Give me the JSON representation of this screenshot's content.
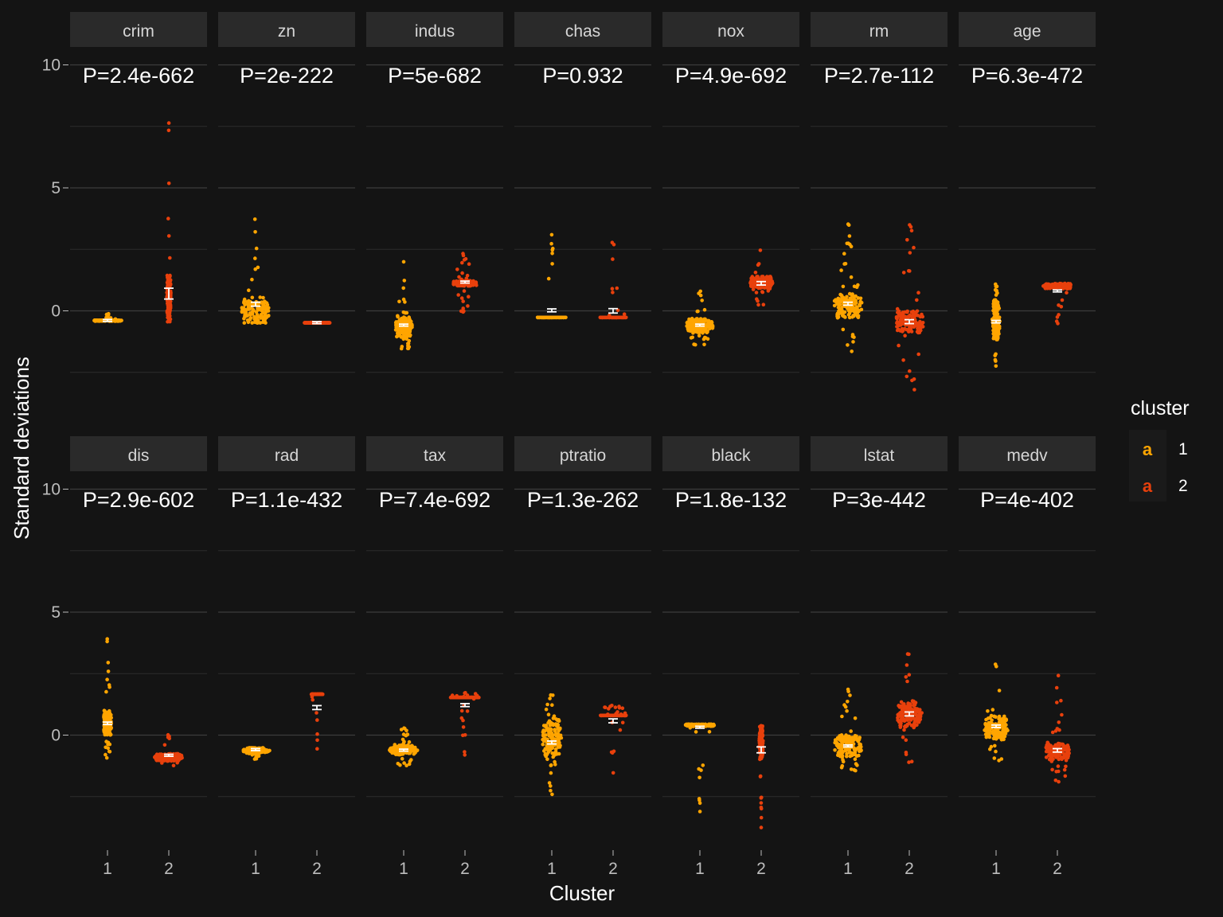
{
  "chart_data": {
    "type": "scatter",
    "subtype": "beeswarm facets with mean ± SE error bars",
    "xlabel": "Cluster",
    "ylabel": "Standard deviations",
    "x_categories": [
      "1",
      "2"
    ],
    "ylim": [
      -4.3,
      10.3
    ],
    "y_ticks": [
      0,
      5,
      10
    ],
    "grid": true,
    "facet_layout": {
      "rows": 2,
      "cols": 7
    },
    "legend": {
      "title": "cluster",
      "position": "right",
      "entries": [
        {
          "label": "1",
          "key": "a",
          "color": "#FFA500"
        },
        {
          "label": "2",
          "key": "a",
          "color": "#E8400C"
        }
      ]
    },
    "colors": {
      "cluster_1": "#FFA500",
      "cluster_2": "#E8400C",
      "error_bar": "#FFFFFF",
      "background": "#141414",
      "strip": "#2A2A2A",
      "grid": "#3A3A3A"
    },
    "panels": [
      {
        "var": "crim",
        "p_label": "P=2.4e-662",
        "c1": {
          "mean": -0.39,
          "se": 0.02,
          "min": -0.42,
          "max": -0.1,
          "q1": -0.41,
          "q3": -0.38,
          "w": 0.5
        },
        "c2": {
          "mean": 0.7,
          "se": 0.22,
          "min": -0.45,
          "max": 8.1,
          "q1": -0.2,
          "q3": 1.5,
          "w": 0.07
        }
      },
      {
        "var": "zn",
        "p_label": "P=2e-222",
        "c1": {
          "mean": 0.27,
          "se": 0.08,
          "min": -0.49,
          "max": 3.75,
          "q1": -0.49,
          "q3": 0.55,
          "w": 0.5
        },
        "c2": {
          "mean": -0.48,
          "se": 0.01,
          "min": -0.49,
          "max": -0.47,
          "q1": -0.49,
          "q3": -0.48,
          "w": 0.48
        }
      },
      {
        "var": "indus",
        "p_label": "P=5e-682",
        "c1": {
          "mean": -0.58,
          "se": 0.04,
          "min": -1.55,
          "max": 2.1,
          "q1": -1.1,
          "q3": -0.2,
          "w": 0.3
        },
        "c2": {
          "mean": 1.17,
          "se": 0.02,
          "min": -0.4,
          "max": 2.4,
          "q1": 1.01,
          "q3": 1.23,
          "w": 0.42
        }
      },
      {
        "var": "chas",
        "p_label": "P=0.932",
        "c1": {
          "mean": 0.02,
          "se": 0.06,
          "min": -0.27,
          "max": 3.66,
          "q1": -0.27,
          "q3": -0.27,
          "w": 0.5
        },
        "c2": {
          "mean": 0.0,
          "se": 0.09,
          "min": -0.27,
          "max": 3.66,
          "q1": -0.27,
          "q3": -0.27,
          "w": 0.45
        }
      },
      {
        "var": "nox",
        "p_label": "P=4.9e-692",
        "c1": {
          "mean": -0.58,
          "se": 0.03,
          "min": -1.45,
          "max": 0.8,
          "q1": -0.9,
          "q3": -0.3,
          "w": 0.5
        },
        "c2": {
          "mean": 1.12,
          "se": 0.07,
          "min": 0.2,
          "max": 2.75,
          "q1": 0.9,
          "q3": 1.4,
          "w": 0.4
        }
      },
      {
        "var": "rm",
        "p_label": "P=2.7e-112",
        "c1": {
          "mean": 0.29,
          "se": 0.06,
          "min": -1.8,
          "max": 3.55,
          "q1": -0.3,
          "q3": 0.7,
          "w": 0.5
        },
        "c2": {
          "mean": -0.44,
          "se": 0.08,
          "min": -3.9,
          "max": 3.55,
          "q1": -0.9,
          "q3": 0.0,
          "w": 0.5
        }
      },
      {
        "var": "age",
        "p_label": "P=6.3e-472",
        "c1": {
          "mean": -0.44,
          "se": 0.05,
          "min": -2.35,
          "max": 1.12,
          "q1": -1.2,
          "q3": 0.4,
          "w": 0.14
        },
        "c2": {
          "mean": 0.81,
          "se": 0.03,
          "min": -1.0,
          "max": 1.12,
          "q1": 0.9,
          "q3": 1.1,
          "w": 0.5
        }
      },
      {
        "var": "dis",
        "p_label": "P=2.9e-602",
        "c1": {
          "mean": 0.48,
          "se": 0.05,
          "min": -1.0,
          "max": 4.0,
          "q1": 0.0,
          "q3": 1.0,
          "w": 0.14
        },
        "c2": {
          "mean": -0.82,
          "se": 0.02,
          "min": -1.27,
          "max": 0.15,
          "q1": -1.05,
          "q3": -0.75,
          "w": 0.5
        }
      },
      {
        "var": "rad",
        "p_label": "P=1.1e-432",
        "c1": {
          "mean": -0.59,
          "se": 0.02,
          "min": -0.98,
          "max": -0.52,
          "q1": -0.75,
          "q3": -0.52,
          "w": 0.5
        },
        "c2": {
          "mean": 1.12,
          "se": 0.08,
          "min": -0.85,
          "max": 1.66,
          "q1": 1.66,
          "q3": 1.66,
          "w": 0.2
        }
      },
      {
        "var": "tax",
        "p_label": "P=7.4e-692",
        "c1": {
          "mean": -0.61,
          "se": 0.03,
          "min": -1.3,
          "max": 0.35,
          "q1": -0.8,
          "q3": -0.4,
          "w": 0.5
        },
        "c2": {
          "mean": 1.22,
          "se": 0.06,
          "min": -1.3,
          "max": 1.8,
          "q1": 1.53,
          "q3": 1.53,
          "w": 0.5
        }
      },
      {
        "var": "ptratio",
        "p_label": "P=1.3e-262",
        "c1": {
          "mean": -0.3,
          "se": 0.06,
          "min": -2.7,
          "max": 1.64,
          "q1": -0.9,
          "q3": 0.7,
          "w": 0.35
        },
        "c2": {
          "mean": 0.58,
          "se": 0.08,
          "min": -1.75,
          "max": 1.27,
          "q1": 0.8,
          "q3": 0.8,
          "w": 0.45
        }
      },
      {
        "var": "black",
        "p_label": "P=1.8e-132",
        "c1": {
          "mean": 0.32,
          "se": 0.02,
          "min": -3.15,
          "max": 0.44,
          "q1": 0.35,
          "q3": 0.44,
          "w": 0.5
        },
        "c2": {
          "mean": -0.6,
          "se": 0.12,
          "min": -3.9,
          "max": 0.44,
          "q1": -1.0,
          "q3": 0.3,
          "w": 0.07
        }
      },
      {
        "var": "lstat",
        "p_label": "P=3e-442",
        "c1": {
          "mean": -0.44,
          "se": 0.04,
          "min": -1.5,
          "max": 2.5,
          "q1": -0.9,
          "q3": 0.0,
          "w": 0.5
        },
        "c2": {
          "mean": 0.86,
          "se": 0.08,
          "min": -1.4,
          "max": 3.5,
          "q1": 0.3,
          "q3": 1.4,
          "w": 0.45
        }
      },
      {
        "var": "medv",
        "p_label": "P=4e-402",
        "c1": {
          "mean": 0.36,
          "se": 0.05,
          "min": -1.2,
          "max": 3.0,
          "q1": -0.2,
          "q3": 0.8,
          "w": 0.42
        },
        "c2": {
          "mean": -0.62,
          "se": 0.07,
          "min": -1.9,
          "max": 3.0,
          "q1": -1.0,
          "q3": -0.3,
          "w": 0.42
        }
      }
    ]
  }
}
